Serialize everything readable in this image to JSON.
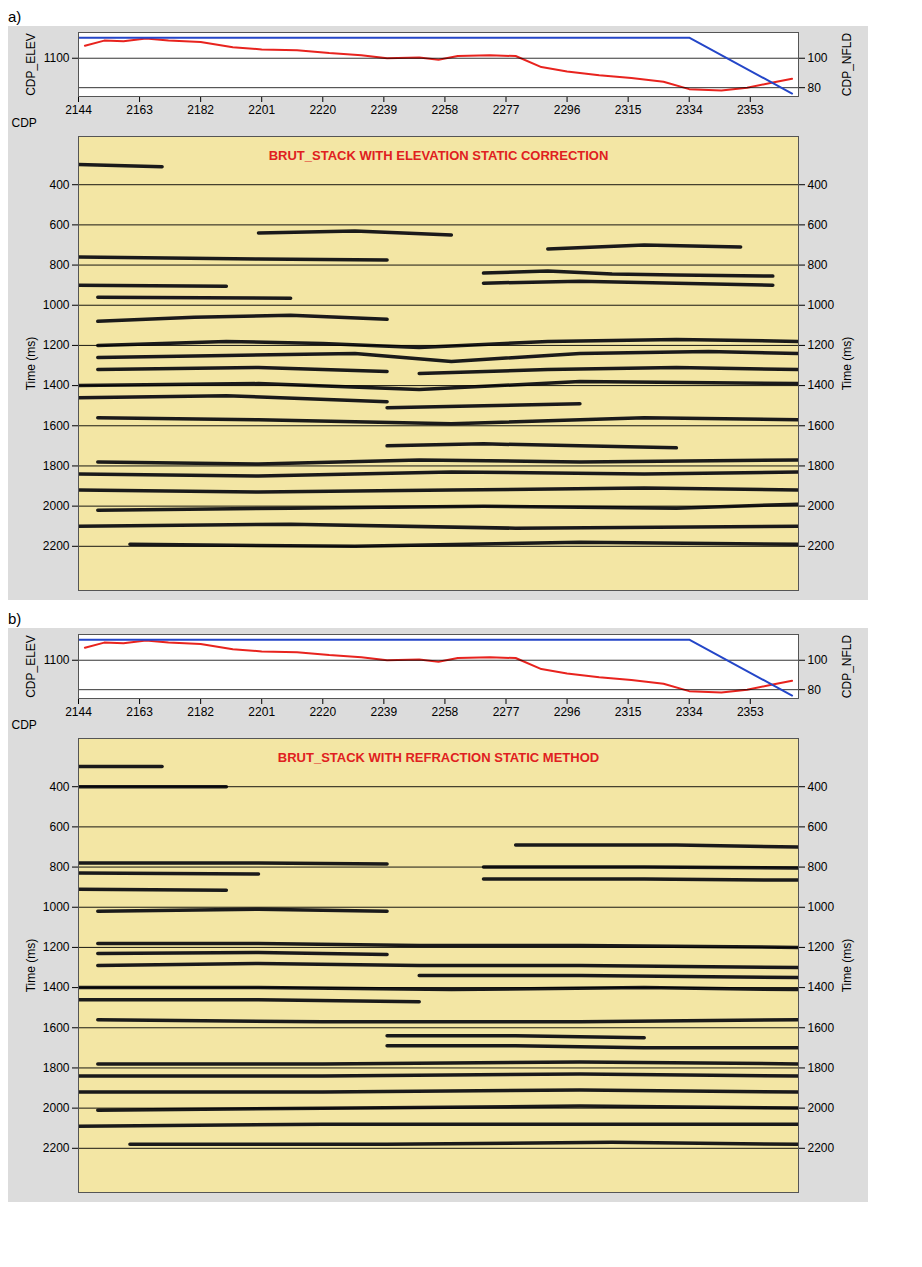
{
  "chart_data": [
    {
      "type": "line",
      "title": "BRUT_STACK WITH ELEVATION STATIC CORRECTION",
      "panel_label": "a)",
      "xlabel": "CDP",
      "xlim": [
        2144,
        2368
      ],
      "xticks": [
        2144,
        2163,
        2182,
        2201,
        2220,
        2239,
        2258,
        2277,
        2296,
        2315,
        2334,
        2353
      ],
      "ylabel": "Time (ms)",
      "ylim": [
        160,
        2420
      ],
      "yticks": [
        400,
        600,
        800,
        1000,
        1200,
        1400,
        1600,
        1800,
        2000,
        2200
      ],
      "grid": true,
      "color": "#1a1a1a",
      "reflectors": [
        {
          "x": [
            2144,
            2200,
            2240
          ],
          "y": [
            760,
            770,
            775
          ]
        },
        {
          "x": [
            2144,
            2190
          ],
          "y": [
            900,
            905
          ]
        },
        {
          "x": [
            2270,
            2290,
            2310,
            2330,
            2360
          ],
          "y": [
            840,
            830,
            845,
            850,
            855
          ]
        },
        {
          "x": [
            2270,
            2300,
            2330,
            2360
          ],
          "y": [
            890,
            880,
            890,
            900
          ]
        },
        {
          "x": [
            2290,
            2320,
            2350
          ],
          "y": [
            720,
            700,
            710
          ]
        },
        {
          "x": [
            2200,
            2230,
            2260
          ],
          "y": [
            640,
            630,
            650
          ]
        },
        {
          "x": [
            2150,
            2180,
            2210,
            2240
          ],
          "y": [
            1080,
            1060,
            1050,
            1070
          ]
        },
        {
          "x": [
            2150,
            2190,
            2220,
            2250,
            2290,
            2330,
            2368
          ],
          "y": [
            1200,
            1180,
            1190,
            1210,
            1180,
            1170,
            1180
          ]
        },
        {
          "x": [
            2150,
            2190,
            2230,
            2260,
            2300,
            2340,
            2368
          ],
          "y": [
            1260,
            1250,
            1240,
            1280,
            1240,
            1230,
            1240
          ]
        },
        {
          "x": [
            2150,
            2200,
            2240
          ],
          "y": [
            1320,
            1310,
            1330
          ]
        },
        {
          "x": [
            2250,
            2290,
            2330,
            2368
          ],
          "y": [
            1340,
            1320,
            1310,
            1320
          ]
        },
        {
          "x": [
            2144,
            2200,
            2250,
            2300,
            2368
          ],
          "y": [
            1400,
            1390,
            1420,
            1380,
            1390
          ]
        },
        {
          "x": [
            2144,
            2190,
            2240
          ],
          "y": [
            1460,
            1450,
            1480
          ]
        },
        {
          "x": [
            2240,
            2270,
            2300
          ],
          "y": [
            1510,
            1500,
            1490
          ]
        },
        {
          "x": [
            2150,
            2200,
            2260,
            2320,
            2368
          ],
          "y": [
            1560,
            1570,
            1590,
            1560,
            1570
          ]
        },
        {
          "x": [
            2240,
            2270,
            2300,
            2330
          ],
          "y": [
            1700,
            1690,
            1700,
            1710
          ]
        },
        {
          "x": [
            2150,
            2200,
            2250,
            2300,
            2368
          ],
          "y": [
            1780,
            1790,
            1770,
            1780,
            1770
          ]
        },
        {
          "x": [
            2144,
            2200,
            2260,
            2320,
            2368
          ],
          "y": [
            1840,
            1850,
            1830,
            1840,
            1830
          ]
        },
        {
          "x": [
            2144,
            2200,
            2260,
            2320,
            2368
          ],
          "y": [
            1920,
            1930,
            1920,
            1910,
            1920
          ]
        },
        {
          "x": [
            2150,
            2210,
            2270,
            2330,
            2368
          ],
          "y": [
            2020,
            2010,
            2000,
            2010,
            1990
          ]
        },
        {
          "x": [
            2144,
            2210,
            2280,
            2368
          ],
          "y": [
            2100,
            2090,
            2110,
            2100
          ]
        },
        {
          "x": [
            2160,
            2230,
            2300,
            2368
          ],
          "y": [
            2190,
            2200,
            2180,
            2190
          ]
        },
        {
          "x": [
            2144,
            2170
          ],
          "y": [
            300,
            310
          ]
        },
        {
          "x": [
            2150,
            2210
          ],
          "y": [
            960,
            965
          ]
        }
      ],
      "header": {
        "ylabel": "CDP_ELEV",
        "ylim": [
          1048,
          1135
        ],
        "yticks": [
          1100
        ],
        "y2label": "CDP_NFLD",
        "y2lim": [
          74,
          117.5
        ],
        "y2ticks": [
          100,
          80
        ],
        "grid": true,
        "series": [
          {
            "name": "CDP_ELEV",
            "color": "#e8231e",
            "axis": "y",
            "x": [
              2146,
              2152,
              2158,
              2165,
              2172,
              2182,
              2192,
              2201,
              2212,
              2222,
              2232,
              2240,
              2250,
              2256,
              2262,
              2272,
              2280,
              2288,
              2296,
              2306,
              2316,
              2326,
              2334,
              2344,
              2352,
              2360,
              2366
            ],
            "values": [
              1117,
              1124,
              1123,
              1127,
              1124,
              1122,
              1115,
              1112,
              1111,
              1107,
              1104,
              1100,
              1101,
              1098,
              1103,
              1104,
              1103,
              1088,
              1082,
              1077,
              1073,
              1068,
              1058,
              1056,
              1060,
              1067,
              1072
            ]
          },
          {
            "name": "CDP_NFLD",
            "color": "#2446c8",
            "axis": "y2",
            "x": [
              2144,
              2334,
              2366
            ],
            "values": [
              114,
              114,
              76
            ]
          }
        ]
      }
    },
    {
      "type": "line",
      "title": "BRUT_STACK WITH REFRACTION STATIC METHOD",
      "panel_label": "b)",
      "xlabel": "CDP",
      "xlim": [
        2144,
        2368
      ],
      "xticks": [
        2144,
        2163,
        2182,
        2201,
        2220,
        2239,
        2258,
        2277,
        2296,
        2315,
        2334,
        2353
      ],
      "ylabel": "Time (ms)",
      "ylim": [
        160,
        2420
      ],
      "yticks": [
        400,
        600,
        800,
        1000,
        1200,
        1400,
        1600,
        1800,
        2000,
        2200
      ],
      "grid": true,
      "color": "#1a1a1a",
      "reflectors": [
        {
          "x": [
            2144,
            2200,
            2240
          ],
          "y": [
            780,
            780,
            785
          ]
        },
        {
          "x": [
            2144,
            2200
          ],
          "y": [
            830,
            835
          ]
        },
        {
          "x": [
            2144,
            2190
          ],
          "y": [
            910,
            915
          ]
        },
        {
          "x": [
            2270,
            2320,
            2368
          ],
          "y": [
            800,
            800,
            805
          ]
        },
        {
          "x": [
            2270,
            2320,
            2368
          ],
          "y": [
            860,
            860,
            865
          ]
        },
        {
          "x": [
            2280,
            2330,
            2368
          ],
          "y": [
            690,
            690,
            700
          ]
        },
        {
          "x": [
            2150,
            2200,
            2240
          ],
          "y": [
            1020,
            1010,
            1020
          ]
        },
        {
          "x": [
            2150,
            2200,
            2250,
            2300,
            2368
          ],
          "y": [
            1180,
            1180,
            1190,
            1190,
            1200
          ]
        },
        {
          "x": [
            2150,
            2200,
            2240
          ],
          "y": [
            1230,
            1225,
            1235
          ]
        },
        {
          "x": [
            2150,
            2200,
            2250,
            2300,
            2368
          ],
          "y": [
            1290,
            1280,
            1290,
            1290,
            1300
          ]
        },
        {
          "x": [
            2250,
            2300,
            2368
          ],
          "y": [
            1340,
            1340,
            1350
          ]
        },
        {
          "x": [
            2144,
            2200,
            2260,
            2320,
            2368
          ],
          "y": [
            1400,
            1400,
            1410,
            1400,
            1410
          ]
        },
        {
          "x": [
            2144,
            2200,
            2250
          ],
          "y": [
            1460,
            1460,
            1470
          ]
        },
        {
          "x": [
            2150,
            2220,
            2300,
            2368
          ],
          "y": [
            1560,
            1570,
            1570,
            1560
          ]
        },
        {
          "x": [
            2240,
            2280,
            2320
          ],
          "y": [
            1640,
            1640,
            1650
          ]
        },
        {
          "x": [
            2240,
            2280,
            2320,
            2368
          ],
          "y": [
            1690,
            1690,
            1700,
            1700
          ]
        },
        {
          "x": [
            2150,
            2220,
            2300,
            2368
          ],
          "y": [
            1780,
            1780,
            1770,
            1780
          ]
        },
        {
          "x": [
            2144,
            2220,
            2300,
            2368
          ],
          "y": [
            1840,
            1840,
            1830,
            1840
          ]
        },
        {
          "x": [
            2144,
            2220,
            2300,
            2368
          ],
          "y": [
            1920,
            1920,
            1910,
            1920
          ]
        },
        {
          "x": [
            2150,
            2220,
            2300,
            2368
          ],
          "y": [
            2010,
            2000,
            1990,
            2000
          ]
        },
        {
          "x": [
            2144,
            2220,
            2300,
            2368
          ],
          "y": [
            2090,
            2080,
            2080,
            2080
          ]
        },
        {
          "x": [
            2160,
            2240,
            2310,
            2368
          ],
          "y": [
            2180,
            2180,
            2170,
            2180
          ]
        },
        {
          "x": [
            2144,
            2170
          ],
          "y": [
            300,
            300
          ]
        },
        {
          "x": [
            2144,
            2190
          ],
          "y": [
            400,
            400
          ]
        }
      ],
      "header": {
        "ylabel": "CDP_ELEV",
        "ylim": [
          1048,
          1135
        ],
        "yticks": [
          1100
        ],
        "y2label": "CDP_NFLD",
        "y2lim": [
          74,
          117.5
        ],
        "y2ticks": [
          100,
          80
        ],
        "grid": true,
        "series": [
          {
            "name": "CDP_ELEV",
            "color": "#e8231e",
            "axis": "y",
            "x": [
              2146,
              2152,
              2158,
              2165,
              2172,
              2182,
              2192,
              2201,
              2212,
              2222,
              2232,
              2240,
              2250,
              2256,
              2262,
              2272,
              2280,
              2288,
              2296,
              2306,
              2316,
              2326,
              2334,
              2344,
              2352,
              2360,
              2366
            ],
            "values": [
              1117,
              1124,
              1123,
              1127,
              1124,
              1122,
              1115,
              1112,
              1111,
              1107,
              1104,
              1100,
              1101,
              1098,
              1103,
              1104,
              1103,
              1088,
              1082,
              1077,
              1073,
              1068,
              1058,
              1056,
              1060,
              1067,
              1072
            ]
          },
          {
            "name": "CDP_NFLD",
            "color": "#2446c8",
            "axis": "y2",
            "x": [
              2144,
              2334,
              2366
            ],
            "values": [
              114,
              114,
              76
            ]
          }
        ]
      }
    }
  ]
}
